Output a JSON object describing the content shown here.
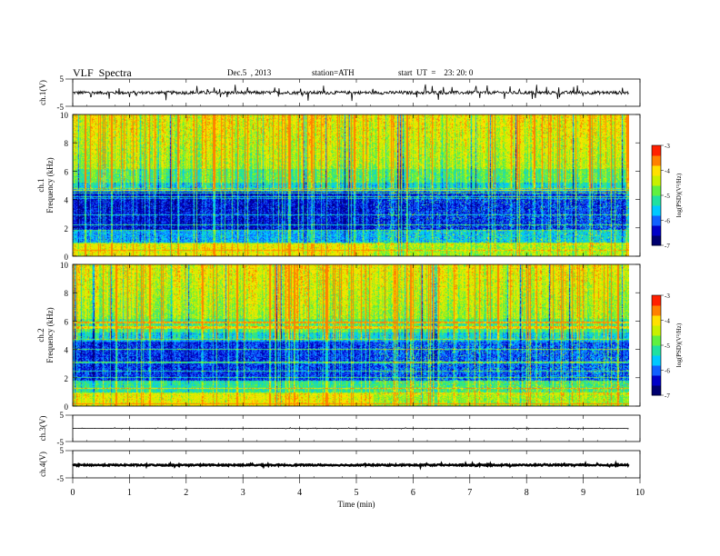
{
  "header": {
    "title": "VLF  Spectra",
    "date": "Dec.5  , 2013",
    "station": "station=ATH",
    "start": "start  UT  =    23: 20: 0"
  },
  "chart_data": {
    "type": "heatmap",
    "x_axis": {
      "label": "Time  (min)",
      "range": [
        0,
        10
      ],
      "ticks": [
        0,
        1,
        2,
        3,
        4,
        5,
        6,
        7,
        8,
        9,
        10
      ],
      "data_end": 9.8
    },
    "panels": [
      {
        "id": "ch1-waveform",
        "kind": "waveform",
        "ylabel": "ch.1(V)",
        "ylim": [
          -5,
          5
        ],
        "tick_labels": [
          "5",
          "-5"
        ],
        "baseline": 0,
        "noise_amplitude": 0.6,
        "spike_amplitude": 2.6
      },
      {
        "id": "ch1-spectrogram",
        "kind": "spectrogram",
        "ylabel": "ch.1",
        "ylabel2": "Frequency  (kHz)",
        "ylim": [
          0,
          10
        ],
        "yticks": [
          "0",
          "2",
          "4",
          "6",
          "8",
          "10"
        ],
        "band_change_time": 5.3,
        "colorbar": {
          "label": "log(PSD)(V²/Hz)",
          "range": [
            -7,
            -3
          ],
          "ticks": [
            "-3",
            "-4",
            "-5",
            "-6",
            "-7"
          ]
        }
      },
      {
        "id": "ch2-spectrogram",
        "kind": "spectrogram",
        "ylabel": "ch.2",
        "ylabel2": "Frequency  (kHz)",
        "ylim": [
          0,
          10
        ],
        "yticks": [
          "0",
          "2",
          "4",
          "6",
          "8",
          "10"
        ],
        "band_change_time": 5.3,
        "colorbar": {
          "label": "log(PSD)(V²/Hz)",
          "range": [
            -7,
            -3
          ],
          "ticks": [
            "-3",
            "-4",
            "-5",
            "-6",
            "-7"
          ]
        }
      },
      {
        "id": "ch3-waveform",
        "kind": "waveform",
        "ylabel": "ch.3(V)",
        "ylim": [
          -5,
          5
        ],
        "tick_labels": [
          "5",
          "-5"
        ],
        "baseline": 0,
        "noise_amplitude": 0.05,
        "spike_amplitude": 0.3
      },
      {
        "id": "ch4-waveform",
        "kind": "waveform",
        "ylabel": "ch.4(V)",
        "ylim": [
          -5,
          5
        ],
        "tick_labels": [
          "5",
          "-5"
        ],
        "baseline": -0.3,
        "noise_amplitude": 0.25,
        "spike_amplitude": 0.4
      }
    ],
    "colormap": [
      "#000070",
      "#0000c8",
      "#1060ff",
      "#00c8ff",
      "#20e0a0",
      "#60f040",
      "#c8f000",
      "#ffe000",
      "#ff8000",
      "#ff2000",
      "#ffffff"
    ]
  }
}
